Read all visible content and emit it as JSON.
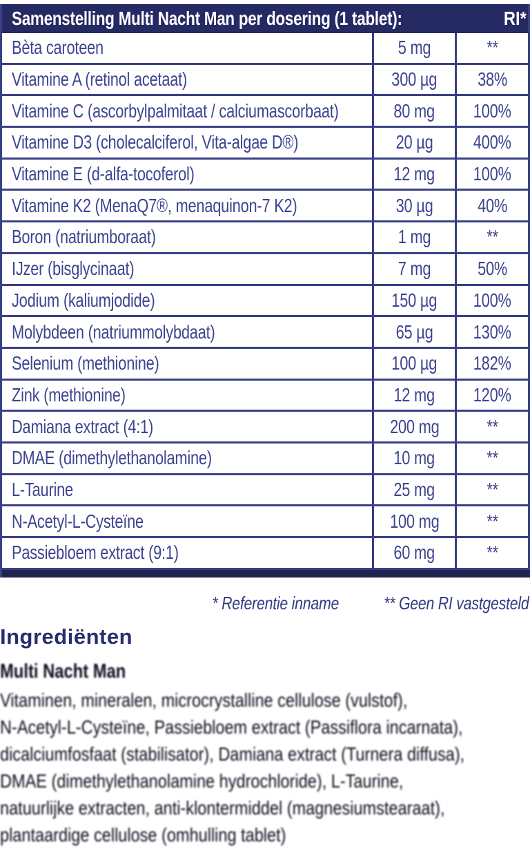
{
  "table": {
    "title": "Samenstelling Multi Nacht Man per dosering (1 tablet):",
    "ri_label": "RI*",
    "rows": [
      {
        "name": "Bèta caroteen",
        "amount": "5 mg",
        "ri": "**"
      },
      {
        "name": "Vitamine A (retinol acetaat)",
        "amount": "300 µg",
        "ri": "38%"
      },
      {
        "name": "Vitamine C (ascorbylpalmitaat / calciumascorbaat)",
        "amount": "80 mg",
        "ri": "100%"
      },
      {
        "name": "Vitamine D3 (cholecalciferol, Vita-algae D®)",
        "amount": "20 µg",
        "ri": "400%"
      },
      {
        "name": "Vitamine E (d-alfa-tocoferol)",
        "amount": "12 mg",
        "ri": "100%"
      },
      {
        "name": "Vitamine K2 (MenaQ7®, menaquinon-7 K2)",
        "amount": "30 µg",
        "ri": "40%"
      },
      {
        "name": "Boron (natriumboraat)",
        "amount": "1 mg",
        "ri": "**"
      },
      {
        "name": "IJzer (bisglycinaat)",
        "amount": "7 mg",
        "ri": "50%"
      },
      {
        "name": "Jodium (kaliumjodide)",
        "amount": "150 µg",
        "ri": "100%"
      },
      {
        "name": "Molybdeen (natriummolybdaat)",
        "amount": "65 µg",
        "ri": "130%"
      },
      {
        "name": "Selenium (methionine)",
        "amount": "100 µg",
        "ri": "182%"
      },
      {
        "name": "Zink (methionine)",
        "amount": "12 mg",
        "ri": "120%"
      },
      {
        "name": "Damiana extract (4:1)",
        "amount": "200 mg",
        "ri": "**"
      },
      {
        "name": "DMAE (dimethylethanolamine)",
        "amount": "10 mg",
        "ri": "**"
      },
      {
        "name": "L-Taurine",
        "amount": "25 mg",
        "ri": "**"
      },
      {
        "name": "N-Acetyl-L-Cysteïne",
        "amount": "100 mg",
        "ri": "**"
      },
      {
        "name": "Passiebloem extract (9:1)",
        "amount": "60 mg",
        "ri": "**"
      }
    ]
  },
  "footnote": {
    "reference": "* Referentie inname",
    "no_ri": "** Geen RI vastgesteld"
  },
  "ingredients": {
    "heading": "Ingrediënten",
    "subheading": "Multi Nacht Man",
    "lines": [
      {
        "text": "Vitaminen, mineralen, microcrystalline cellulose (vulstof),"
      },
      {
        "text": "N-Acetyl-L-Cysteïne, Passiebloem extract (Passiflora incarnata),"
      },
      {
        "text": "dicalciumfosfaat (stabilisator), Damiana extract (Turnera diffusa),"
      },
      {
        "text": "DMAE (dimethylethanolamine hydrochloride), L-Taurine,"
      },
      {
        "text": "natuurlijke extracten, anti-klontermiddel (magnesiumstearaat),"
      },
      {
        "text": "plantaardige cellulose (omhulling tablet)"
      }
    ]
  },
  "colors": {
    "header_bg": "#252a63",
    "border": "#3a4086",
    "cell_text": "#3e4490",
    "bottom_bar": "#20254f",
    "footnote_text": "#333a80",
    "heading_text": "#272d6e",
    "paragraph_text": "#0d0e1c"
  }
}
